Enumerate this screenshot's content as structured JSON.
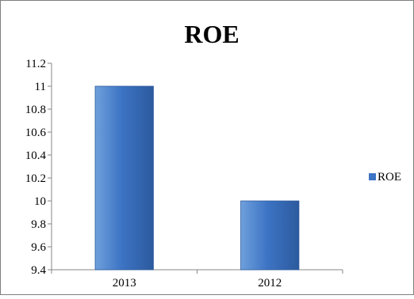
{
  "chart_data": {
    "type": "bar",
    "title": "ROE",
    "categories": [
      "2013",
      "2012"
    ],
    "series": [
      {
        "name": "ROE",
        "values": [
          11,
          10
        ]
      }
    ],
    "ylim": [
      9.4,
      11.2
    ],
    "yticks": [
      "9.4",
      "9.6",
      "9.8",
      "10",
      "10.2",
      "10.4",
      "10.6",
      "10.8",
      "11",
      "11.2"
    ],
    "xlabel": "",
    "ylabel": "",
    "grid": false,
    "legend_position": "right",
    "colors": {
      "bar_light": "#6fa0dc",
      "bar_main": "#3d74c4",
      "bar_dark": "#2c5a9e",
      "axis": "#878787",
      "border": "#7f7f7f"
    }
  }
}
